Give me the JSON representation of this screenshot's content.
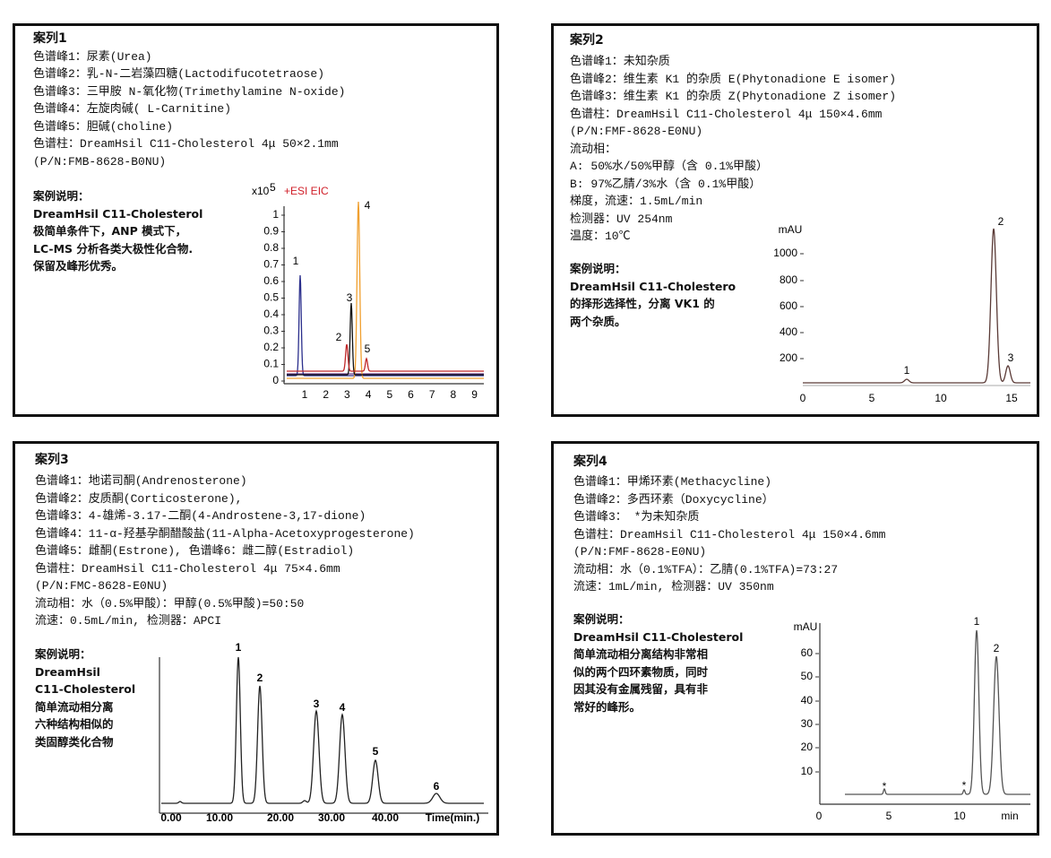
{
  "cases": [
    {
      "title": "案列1",
      "lines": [
        "色谱峰1：尿素(Urea)",
        "色谱峰2：乳-N-二岩藻四糖(Lactodifucotetraose)",
        "色谱峰3：三甲胺 N-氧化物(Trimethylamine N-oxide)",
        "色谱峰4：左旋肉碱( L-Carnitine)",
        "色谱峰5：胆碱(choline)",
        "色谱柱：DreamHsil C11-Cholesterol 4μ 50×2.1mm",
        "(P/N:FMB-8628-B0NU)"
      ],
      "note_title": "案例说明：",
      "note": [
        "DreamHsil C11-Cholesterol",
        "极简单条件下，ANP 模式下，",
        "LC-MS 分析各类大极性化合物.",
        "保留及峰形优秀。"
      ],
      "chart": {
        "y_unit": "x10",
        "y_unit_exp": "5",
        "label": "+ESI EIC",
        "yticks": [
          "1",
          "0.9",
          "0.8",
          "0.7",
          "0.6",
          "0.5",
          "0.4",
          "0.3",
          "0.2",
          "0.1",
          "0"
        ],
        "xticks": [
          "1",
          "2",
          "3",
          "4",
          "5",
          "6",
          "7",
          "8",
          "9"
        ],
        "peaks": [
          "1",
          "2",
          "3",
          "4",
          "5"
        ]
      }
    },
    {
      "title": "案列2",
      "lines": [
        "色谱峰1：未知杂质",
        "色谱峰2：维生素 K1 的杂质 E(Phytonadione E isomer)",
        "色谱峰3：维生素 K1 的杂质 Z(Phytonadione Z isomer)",
        "色谱柱：DreamHsil C11-Cholesterol 4μ 150×4.6mm",
        "(P/N:FMF-8628-E0NU)",
        "流动相：",
        "A: 50%水/50%甲醇（含 0.1%甲酸）",
        "B: 97%乙腈/3%水（含 0.1%甲酸）",
        "梯度，流速：1.5mL/min",
        "检测器：UV 254nm",
        "温度：10℃"
      ],
      "note_title": "案例说明：",
      "note": [
        "DreamHsil C11-Cholestero",
        "的择形选择性，分离 VK1 的",
        "两个杂质。"
      ],
      "chart": {
        "y_unit": "mAU",
        "yticks": [
          "1000",
          "800",
          "600",
          "400",
          "200"
        ],
        "xticks": [
          "0",
          "5",
          "10",
          "15"
        ],
        "peaks": [
          "1",
          "2",
          "3"
        ]
      }
    },
    {
      "title": "案列3",
      "lines": [
        "色谱峰1：地诺司酮(Andrenosterone)",
        "色谱峰2：皮质酮(Corticosterone),",
        "色谱峰3：4-雄烯-3.17-二酮(4-Androstene-3,17-dione)",
        "色谱峰4：11-α-羟基孕酮醋酸盐(11-Alpha-Acetoxyprogesterone)",
        "色谱峰5：雌酮(Estrone), 色谱峰6：雌二醇(Estradiol)",
        "色谱柱：DreamHsil C11-Cholesterol 4μ 75×4.6mm",
        "(P/N:FMC-8628-E0NU)",
        "流动相：水（0.5%甲酸）：甲醇(0.5%甲酸)=50:50",
        "流速：0.5mL/min, 检测器：APCI"
      ],
      "note_title": "案例说明：",
      "note": [
        "DreamHsil",
        "C11-Cholesterol",
        "简单流动相分离",
        "六种结构相似的",
        "类固醇类化合物"
      ],
      "chart": {
        "xticks": [
          "0.00",
          "10.00",
          "20.00",
          "30.00",
          "40.00"
        ],
        "x_label": "Time(min.)",
        "peaks": [
          "1",
          "2",
          "3",
          "4",
          "5",
          "6"
        ]
      }
    },
    {
      "title": "案列4",
      "lines": [
        "色谱峰1：甲烯环素(Methacycline)",
        "色谱峰2：多西环素（Doxycycline）",
        "色谱峰3： *为未知杂质",
        "色谱柱：DreamHsil C11-Cholesterol 4μ 150×4.6mm",
        "(P/N:FMF-8628-E0NU)",
        "流动相：水（0.1%TFA）：乙腈(0.1%TFA)=73:27",
        "流速：1mL/min, 检测器：UV 350nm"
      ],
      "note_title": "案例说明：",
      "note": [
        "DreamHsil C11-Cholesterol",
        "简单流动相分离结构非常相",
        "似的两个四环素物质，同时",
        "因其没有金属残留，具有非",
        "常好的峰形。"
      ],
      "chart": {
        "y_unit": "mAU",
        "yticks": [
          "60",
          "50",
          "40",
          "30",
          "20",
          "10"
        ],
        "xticks": [
          "0",
          "5",
          "10"
        ],
        "x_label": "min",
        "peaks": [
          "1",
          "2",
          "*",
          "*"
        ]
      }
    }
  ]
}
